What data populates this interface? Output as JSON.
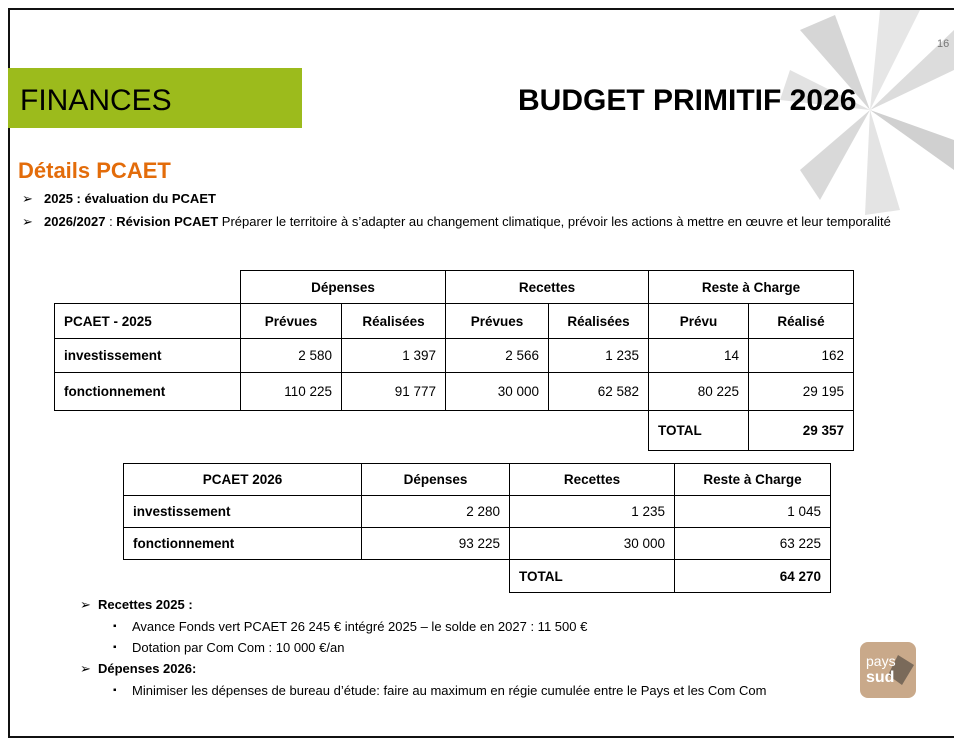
{
  "page_number": "16",
  "header": {
    "section": "FINANCES",
    "title": "BUDGET PRIMITIF 2026"
  },
  "subtitle": "Détails PCAET",
  "bullets": [
    [
      {
        "text": "2025 : évaluation du PCAET",
        "bold": true
      }
    ],
    [
      {
        "text": "2026/2027",
        "bold": true
      },
      {
        "text": " : ",
        "bold": false
      },
      {
        "text": "Révision PCAET",
        "bold": true
      },
      {
        "text": " Préparer le territoire à s’adapter au changement climatique, prévoir les actions à mettre en œuvre et leur temporalité",
        "bold": false
      }
    ]
  ],
  "table1": {
    "group_headers": [
      "Dépenses",
      "Recettes",
      "Reste à Charge"
    ],
    "columns": [
      "PCAET - 2025",
      "Prévues",
      "Réalisées",
      "Prévues",
      "Réalisées",
      "Prévu",
      "Réalisé"
    ],
    "rows": [
      [
        "investissement",
        "2 580",
        "1 397",
        "2 566",
        "1 235",
        "14",
        "162"
      ],
      [
        "fonctionnement",
        "110 225",
        "91 777",
        "30 000",
        "62 582",
        "80 225",
        "29 195"
      ]
    ],
    "total": {
      "label": "TOTAL",
      "value": "29 357"
    }
  },
  "table2": {
    "columns": [
      "PCAET 2026",
      "Dépenses",
      "Recettes",
      "Reste à Charge"
    ],
    "rows": [
      [
        "investissement",
        "2 280",
        "1 235",
        "1 045"
      ],
      [
        "fonctionnement",
        "93 225",
        "30 000",
        "63 225"
      ]
    ],
    "total": {
      "label": "TOTAL",
      "value": "64 270"
    }
  },
  "notes": [
    {
      "title": "Recettes 2025 :",
      "items": [
        "Avance Fonds vert PCAET 26 245 € intégré 2025 – le solde en 2027 : 11 500 €",
        "Dotation par Com Com : 10 000 €/an"
      ]
    },
    {
      "title": "Dépenses 2026:",
      "items": [
        "Minimiser les dépenses de bureau d’étude: faire au maximum en régie cumulée entre le Pays et les Com Com"
      ]
    }
  ],
  "logo": {
    "line1": "pays",
    "line2": "sud"
  }
}
